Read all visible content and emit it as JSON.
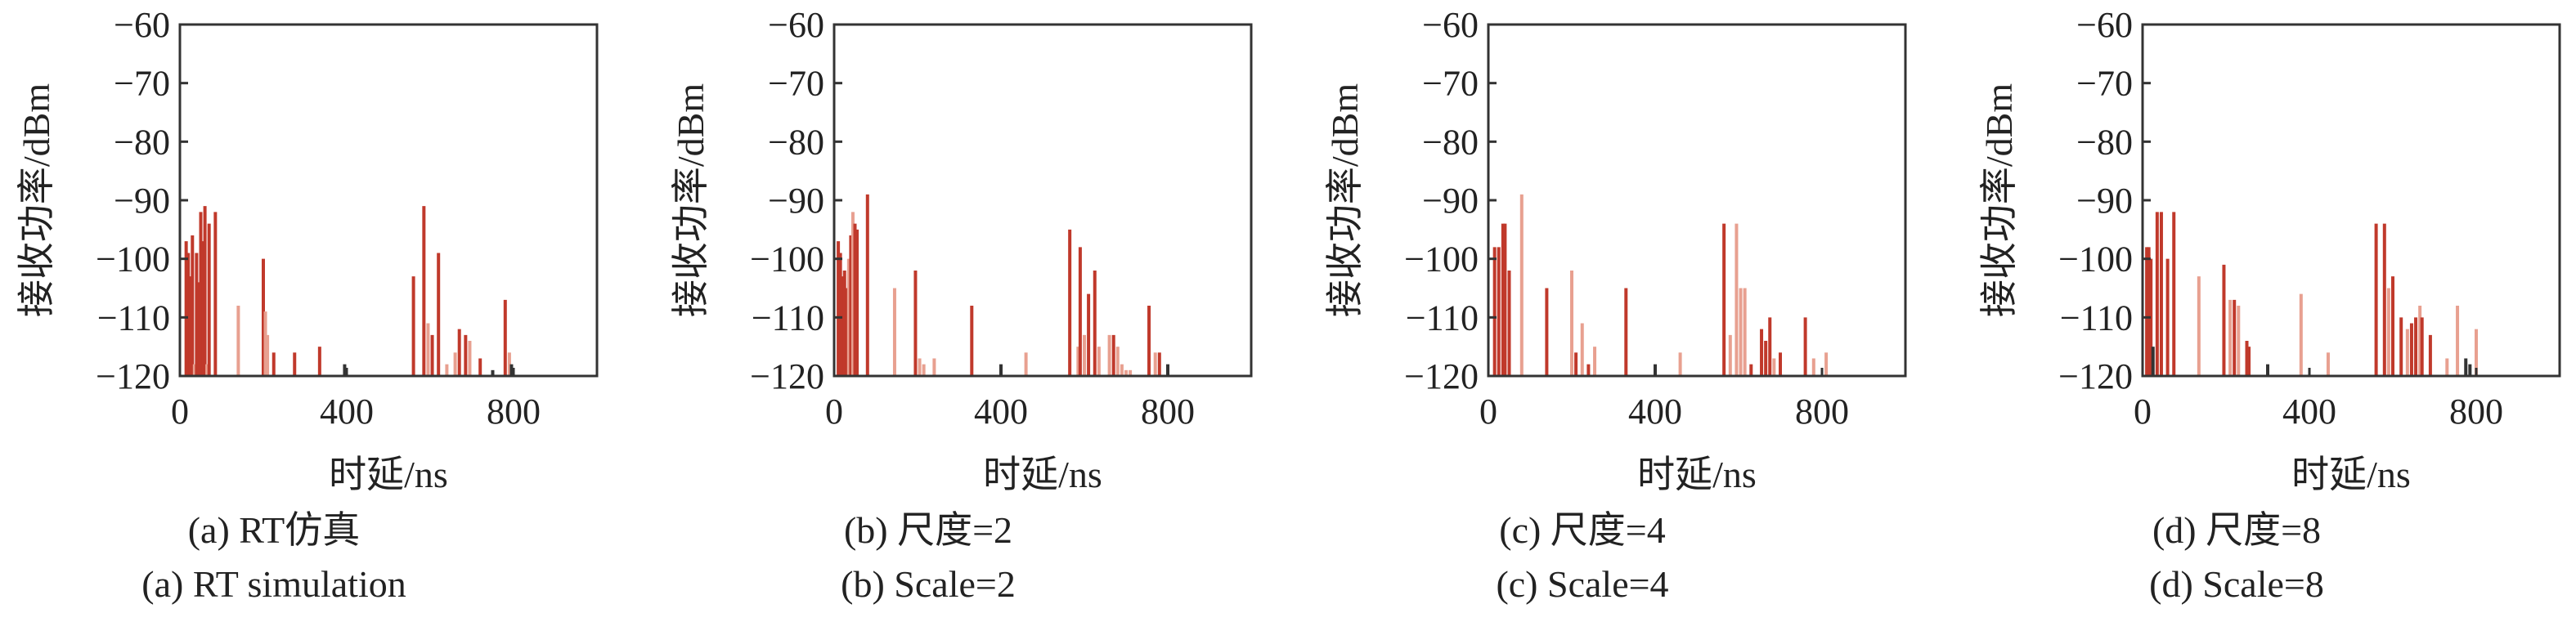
{
  "chart_data": [
    {
      "type": "bar",
      "caption_cn": "(a) RT仿真",
      "caption_en": "(a) RT simulation",
      "xlabel": "时延/ns",
      "ylabel": "接收功率/dBm",
      "xlim": [
        0,
        1000
      ],
      "ylim": [
        -120,
        -60
      ],
      "xticks": [
        0,
        400,
        800
      ],
      "yticks": [
        -60,
        -70,
        -80,
        -90,
        -100,
        -110,
        -120
      ],
      "series": [
        {
          "x": [
            15,
            20,
            25,
            30,
            35,
            40,
            45,
            50,
            55,
            60,
            65,
            70,
            85,
            140,
            200,
            205,
            210,
            225,
            275,
            335,
            395,
            560,
            585,
            595,
            605,
            620,
            640,
            660,
            670,
            685,
            695,
            720,
            750,
            780,
            790,
            795
          ],
          "values": [
            -97,
            -99,
            -103,
            -96,
            -118,
            -99,
            -104,
            -92,
            -97,
            -91,
            -118,
            -94,
            -92,
            -108,
            -100,
            -109,
            -113,
            -116,
            -116,
            -115,
            -118,
            -103,
            -91,
            -111,
            -113,
            -99,
            -118,
            -116,
            -112,
            -113,
            -114,
            -117,
            -119,
            -107,
            -116,
            -118
          ],
          "colors": [
            "#c0392b",
            "#c0392b",
            "#c0392b",
            "#c0392b",
            "#e8a090",
            "#c0392b",
            "#c0392b",
            "#c0392b",
            "#c0392b",
            "#c0392b",
            "#e8a090",
            "#c0392b",
            "#c0392b",
            "#e8a090",
            "#c0392b",
            "#e8a090",
            "#e8a090",
            "#c0392b",
            "#c0392b",
            "#c0392b",
            "#333333",
            "#c0392b",
            "#c0392b",
            "#e8a090",
            "#c0392b",
            "#c0392b",
            "#e8a090",
            "#e8a090",
            "#c0392b",
            "#c0392b",
            "#e8a090",
            "#c0392b",
            "#333333",
            "#c0392b",
            "#e8a090",
            "#333333"
          ]
        }
      ]
    },
    {
      "type": "bar",
      "caption_cn": "(b) 尺度=2",
      "caption_en": "(b) Scale=2",
      "xlabel": "时延/ns",
      "ylabel": "接收功率/dBm",
      "xlim": [
        0,
        1000
      ],
      "ylim": [
        -120,
        -60
      ],
      "xticks": [
        0,
        400,
        800
      ],
      "yticks": [
        -60,
        -70,
        -80,
        -90,
        -100,
        -110,
        -120
      ],
      "series": [
        {
          "x": [
            10,
            15,
            20,
            25,
            30,
            35,
            40,
            45,
            50,
            55,
            80,
            145,
            195,
            205,
            215,
            240,
            330,
            400,
            460,
            565,
            585,
            590,
            600,
            610,
            625,
            635,
            660,
            670,
            680,
            690,
            700,
            710,
            755,
            770,
            780,
            800
          ],
          "values": [
            -97,
            -99,
            -103,
            -102,
            -105,
            -100,
            -96,
            -92,
            -94,
            -95,
            -89,
            -105,
            -102,
            -117,
            -118,
            -117,
            -108,
            -118,
            -116,
            -95,
            -115,
            -98,
            -113,
            -106,
            -102,
            -115,
            -113,
            -113,
            -115,
            -118,
            -119,
            -119,
            -108,
            -116,
            -116,
            -118
          ],
          "colors": [
            "#c0392b",
            "#c0392b",
            "#c0392b",
            "#c0392b",
            "#c0392b",
            "#e8a090",
            "#c0392b",
            "#e8a090",
            "#c0392b",
            "#c0392b",
            "#c0392b",
            "#e8a090",
            "#c0392b",
            "#e8a090",
            "#e8a090",
            "#e8a090",
            "#c0392b",
            "#333333",
            "#e8a090",
            "#c0392b",
            "#e8a090",
            "#c0392b",
            "#e8a090",
            "#c0392b",
            "#c0392b",
            "#e8a090",
            "#e8a090",
            "#c0392b",
            "#e8a090",
            "#e8a090",
            "#e8a090",
            "#e8a090",
            "#c0392b",
            "#e8a090",
            "#c0392b",
            "#333333"
          ]
        }
      ]
    },
    {
      "type": "bar",
      "caption_cn": "(c) 尺度=4",
      "caption_en": "(c) Scale=4",
      "xlabel": "时延/ns",
      "ylabel": "接收功率/dBm",
      "xlim": [
        0,
        1000
      ],
      "ylim": [
        -120,
        -60
      ],
      "xticks": [
        0,
        400,
        800
      ],
      "yticks": [
        -60,
        -70,
        -80,
        -90,
        -100,
        -110,
        -120
      ],
      "series": [
        {
          "x": [
            15,
            25,
            35,
            40,
            50,
            80,
            140,
            200,
            210,
            225,
            240,
            255,
            330,
            400,
            460,
            565,
            580,
            595,
            605,
            615,
            630,
            655,
            665,
            675,
            685,
            700,
            760,
            780,
            810
          ],
          "values": [
            -98,
            -98,
            -94,
            -94,
            -102,
            -89,
            -105,
            -102,
            -116,
            -111,
            -118,
            -115,
            -105,
            -118,
            -116,
            -94,
            -113,
            -94,
            -105,
            -105,
            -118,
            -112,
            -114,
            -110,
            -117,
            -116,
            -110,
            -117,
            -116
          ],
          "colors": [
            "#c0392b",
            "#c0392b",
            "#c0392b",
            "#c0392b",
            "#c0392b",
            "#e8a090",
            "#c0392b",
            "#e8a090",
            "#c0392b",
            "#e8a090",
            "#c0392b",
            "#e8a090",
            "#c0392b",
            "#333333",
            "#e8a090",
            "#c0392b",
            "#e8a090",
            "#e8a090",
            "#e8a090",
            "#e8a090",
            "#c0392b",
            "#c0392b",
            "#c0392b",
            "#c0392b",
            "#e8a090",
            "#c0392b",
            "#c0392b",
            "#e8a090",
            "#e8a090"
          ]
        }
      ]
    },
    {
      "type": "bar",
      "caption_cn": "(d) 尺度=8",
      "caption_en": "(d) Scale=8",
      "xlabel": "时延/ns",
      "ylabel": "接收功率/dBm",
      "xlim": [
        0,
        1000
      ],
      "ylim": [
        -120,
        -60
      ],
      "xticks": [
        0,
        400,
        800
      ],
      "yticks": [
        -60,
        -70,
        -80,
        -90,
        -100,
        -110,
        -120
      ],
      "series": [
        {
          "x": [
            10,
            15,
            20,
            25,
            35,
            45,
            60,
            75,
            135,
            195,
            210,
            220,
            230,
            250,
            255,
            300,
            380,
            445,
            560,
            580,
            590,
            600,
            620,
            635,
            645,
            655,
            665,
            670,
            690,
            730,
            755,
            775,
            785,
            800
          ],
          "values": [
            -98,
            -98,
            -100,
            -115,
            -92,
            -92,
            -100,
            -92,
            -103,
            -101,
            -107,
            -107,
            -108,
            -114,
            -115,
            -118,
            -106,
            -116,
            -94,
            -94,
            -105,
            -103,
            -110,
            -112,
            -111,
            -110,
            -108,
            -110,
            -113,
            -117,
            -108,
            -117,
            -118,
            -112
          ],
          "colors": [
            "#c0392b",
            "#c0392b",
            "#c0392b",
            "#333333",
            "#c0392b",
            "#c0392b",
            "#c0392b",
            "#c0392b",
            "#e8a090",
            "#c0392b",
            "#e8a090",
            "#c0392b",
            "#e8a090",
            "#c0392b",
            "#c0392b",
            "#333333",
            "#e8a090",
            "#e8a090",
            "#c0392b",
            "#c0392b",
            "#e8a090",
            "#c0392b",
            "#c0392b",
            "#e8a090",
            "#c0392b",
            "#c0392b",
            "#e8a090",
            "#c0392b",
            "#c0392b",
            "#e8a090",
            "#e8a090",
            "#333333",
            "#333333",
            "#e8a090"
          ]
        }
      ]
    }
  ]
}
